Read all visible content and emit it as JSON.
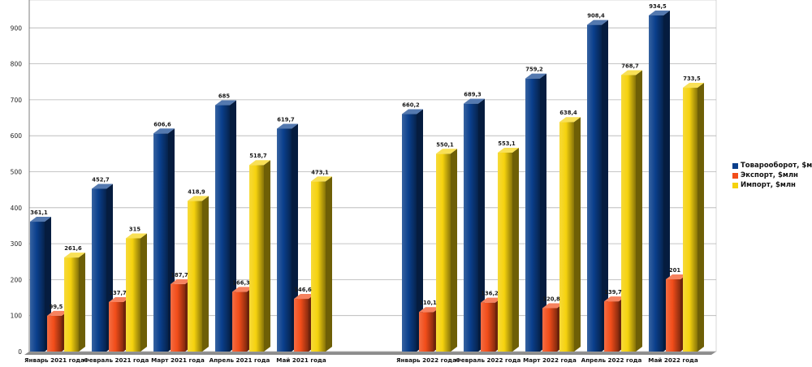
{
  "chart_data": {
    "type": "bar",
    "title": "",
    "xlabel": "",
    "ylabel": "",
    "ylim": [
      0,
      1000
    ],
    "yticks": [
      0,
      100,
      200,
      300,
      400,
      500,
      600,
      700,
      800,
      900
    ],
    "grid": true,
    "legend_position": "right",
    "categories": [
      "Январь 2021 года",
      "Февраль 2021 года",
      "Март 2021 года",
      "Апрель 2021 года",
      "Май 2021 года",
      "Январь 2022 года",
      "Февраль 2022 года",
      "Март 2022 года",
      "Апрель 2022 года",
      "Май 2022 года"
    ],
    "series": [
      {
        "name": "Товарооборот, $млн",
        "color": "#0a3f8c",
        "values": [
          361.1,
          452.7,
          606.6,
          685,
          619.7,
          660.2,
          689.3,
          759.2,
          908.4,
          934.5
        ],
        "labels": [
          "361,1",
          "452,7",
          "606,6",
          "685",
          "619,7",
          "660,2",
          "689,3",
          "759,2",
          "908,4",
          "934,5"
        ]
      },
      {
        "name": "Экспорт, $млн",
        "color": "#f24d1a",
        "values": [
          99.5,
          137.7,
          187.7,
          166.3,
          146.6,
          110.1,
          136.2,
          120.8,
          139.7,
          201
        ],
        "labels": [
          "99,5",
          "137,7",
          "187,7",
          "166,3",
          "146,6",
          "110,1",
          "136,2",
          "120,8",
          "139,7",
          "201"
        ]
      },
      {
        "name": "Импорт, $млн",
        "color": "#f5d20e",
        "values": [
          261.6,
          315,
          418.9,
          518.7,
          473.1,
          550.1,
          553.1,
          638.4,
          768.7,
          733.5
        ],
        "labels": [
          "261,6",
          "315",
          "418,9",
          "518,7",
          "473,1",
          "550,1",
          "553,1",
          "638,4",
          "768,7",
          "733,5"
        ]
      }
    ]
  }
}
